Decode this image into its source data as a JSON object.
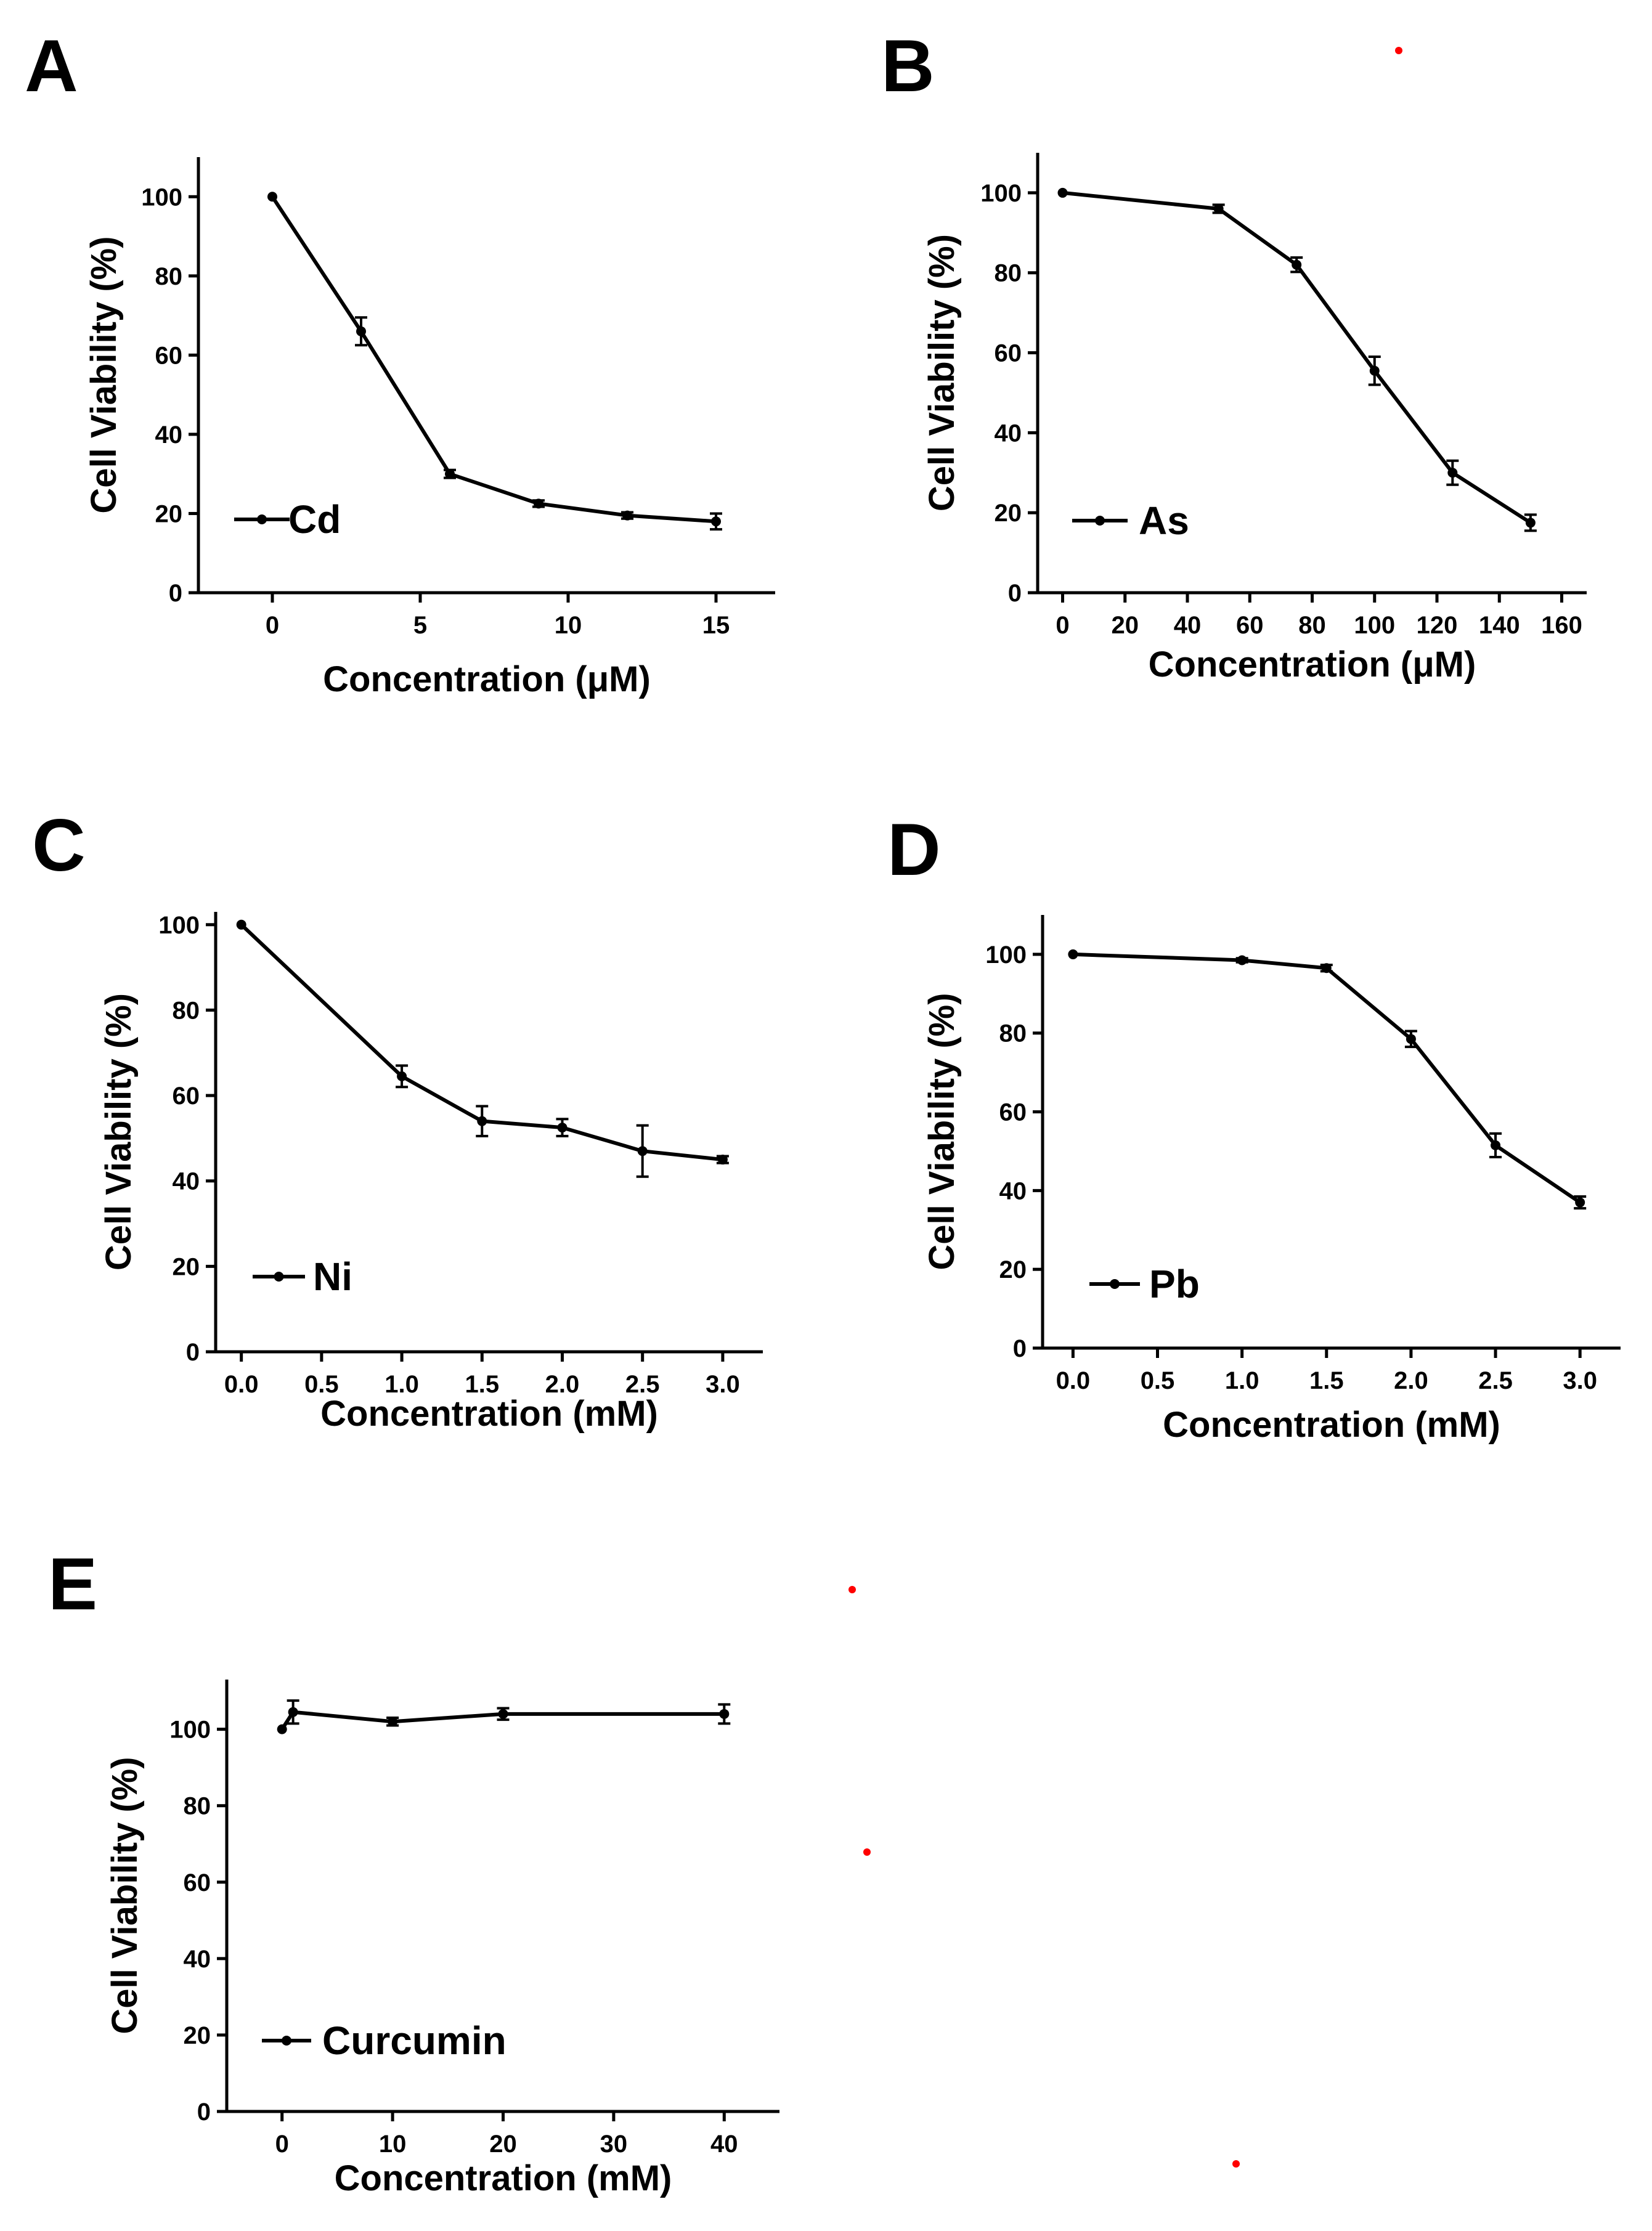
{
  "figure": {
    "background": "#ffffff",
    "ink": "#000000",
    "dot_color": "#ff0000"
  },
  "chart_data": [
    {
      "type": "line",
      "panel": "A",
      "series": [
        {
          "name": "Cd",
          "x": [
            0,
            3,
            6,
            9,
            12,
            15
          ],
          "y": [
            100,
            66,
            30,
            22.5,
            19.5,
            18
          ],
          "err": [
            0,
            3.5,
            1,
            0.8,
            0.8,
            2
          ]
        }
      ],
      "xlabel": "Concentration (μM)",
      "ylabel": "Cell Viability (%)",
      "xlim": [
        -2.5,
        17
      ],
      "ylim": [
        0,
        110
      ],
      "xticks": [
        0,
        5,
        10,
        15
      ],
      "xticklabels": [
        "0",
        "5",
        "10",
        "15"
      ],
      "yticks": [
        0,
        20,
        40,
        60,
        80,
        100
      ],
      "yticklabels": [
        "0",
        "20",
        "40",
        "60",
        "80",
        "100"
      ],
      "legend": "bottom-left",
      "grid": false
    },
    {
      "type": "line",
      "panel": "B",
      "series": [
        {
          "name": "As",
          "x": [
            0,
            50,
            75,
            100,
            125,
            150
          ],
          "y": [
            100,
            96,
            82,
            55.5,
            30,
            17.5
          ],
          "err": [
            0,
            1,
            1.8,
            3.5,
            3,
            2
          ]
        }
      ],
      "xlabel": "Concentration (μM)",
      "ylabel": "Cell Viability (%)",
      "xlim": [
        -8,
        168
      ],
      "ylim": [
        0,
        110
      ],
      "xticks": [
        0,
        20,
        40,
        60,
        80,
        100,
        120,
        140,
        160
      ],
      "xticklabels": [
        "0",
        "20",
        "40",
        "60",
        "80",
        "100",
        "120",
        "140",
        "160"
      ],
      "yticks": [
        0,
        20,
        40,
        60,
        80,
        100
      ],
      "yticklabels": [
        "0",
        "20",
        "40",
        "60",
        "80",
        "100"
      ],
      "legend": "bottom-left",
      "grid": false
    },
    {
      "type": "line",
      "panel": "C",
      "series": [
        {
          "name": "Ni",
          "x": [
            0,
            1,
            1.5,
            2,
            2.5,
            3
          ],
          "y": [
            100,
            64.5,
            54,
            52.5,
            47,
            45
          ],
          "err": [
            0,
            2.5,
            3.5,
            2,
            6,
            0.8
          ]
        }
      ],
      "xlabel": "Concentration (mM)",
      "ylabel": "Cell Viability (%)",
      "xlim": [
        -0.16,
        3.25
      ],
      "ylim": [
        0,
        103
      ],
      "xticks": [
        0,
        0.5,
        1,
        1.5,
        2,
        2.5,
        3
      ],
      "xticklabels": [
        "0.0",
        "0.5",
        "1.0",
        "1.5",
        "2.0",
        "2.5",
        "3.0"
      ],
      "yticks": [
        0,
        20,
        40,
        60,
        80,
        100
      ],
      "yticklabels": [
        "0",
        "20",
        "40",
        "60",
        "80",
        "100"
      ],
      "legend": "bottom-left",
      "grid": false
    },
    {
      "type": "line",
      "panel": "D",
      "series": [
        {
          "name": "Pb",
          "x": [
            0,
            1,
            1.5,
            2,
            2.5,
            3
          ],
          "y": [
            100,
            98.5,
            96.5,
            78.5,
            51.5,
            37
          ],
          "err": [
            0,
            0.5,
            0.8,
            2,
            3,
            1.5
          ]
        }
      ],
      "xlabel": "Concentration (mM)",
      "ylabel": "Cell Viability (%)",
      "xlim": [
        -0.18,
        3.24
      ],
      "ylim": [
        0,
        110
      ],
      "xticks": [
        0,
        0.5,
        1,
        1.5,
        2,
        2.5,
        3
      ],
      "xticklabels": [
        "0.0",
        "0.5",
        "1.0",
        "1.5",
        "2.0",
        "2.5",
        "3.0"
      ],
      "yticks": [
        0,
        20,
        40,
        60,
        80,
        100
      ],
      "yticklabels": [
        "0",
        "20",
        "40",
        "60",
        "80",
        "100"
      ],
      "legend": "bottom-left",
      "grid": false
    },
    {
      "type": "line",
      "panel": "E",
      "series": [
        {
          "name": "Curcumin",
          "x": [
            0,
            1,
            10,
            20,
            40
          ],
          "y": [
            100,
            104.5,
            102,
            104,
            104
          ],
          "err": [
            0,
            3,
            1,
            1.5,
            2.5
          ]
        }
      ],
      "xlabel": "Concentration (mM)",
      "ylabel": "Cell Viability (%)",
      "xlim": [
        -5,
        45
      ],
      "ylim": [
        0,
        113
      ],
      "xticks": [
        0,
        10,
        20,
        30,
        40
      ],
      "xticklabels": [
        "0",
        "10",
        "20",
        "30",
        "40"
      ],
      "yticks": [
        0,
        20,
        40,
        60,
        80,
        100
      ],
      "yticklabels": [
        "0",
        "20",
        "40",
        "60",
        "80",
        "100"
      ],
      "legend": "bottom-left",
      "grid": false
    }
  ]
}
